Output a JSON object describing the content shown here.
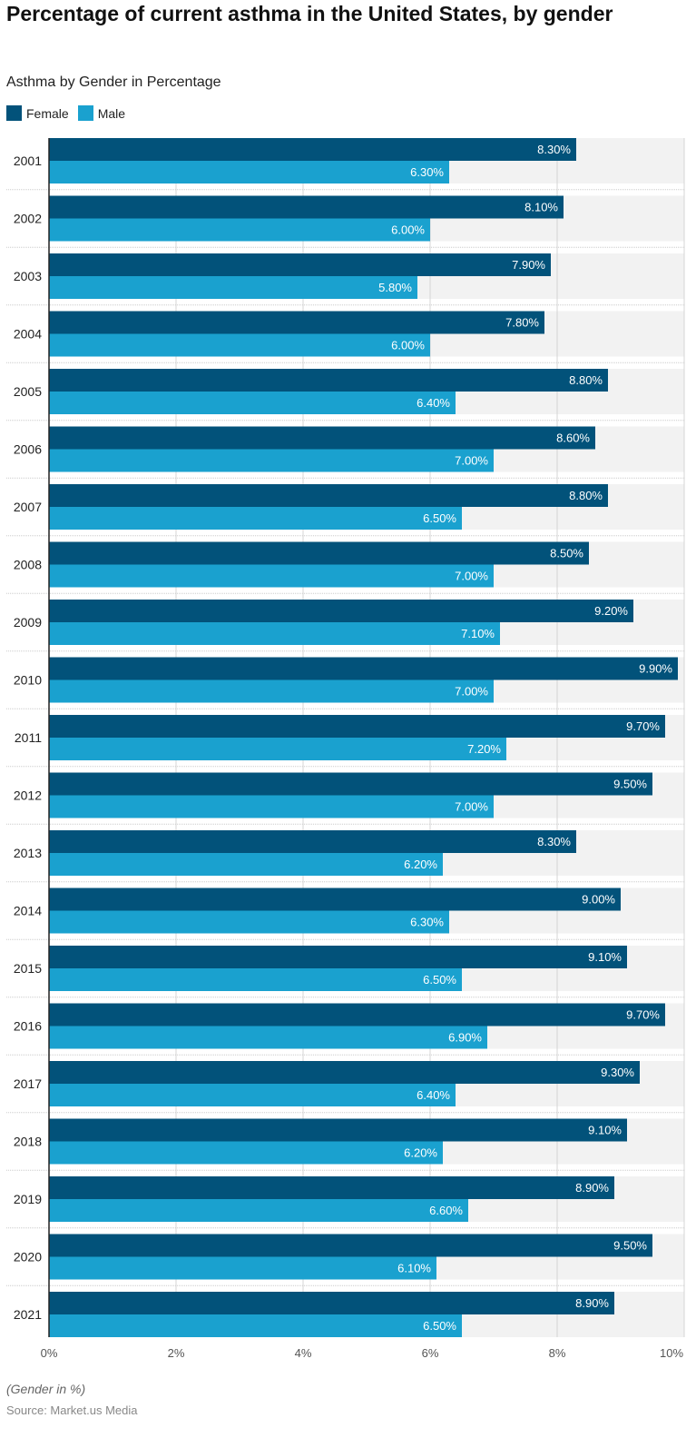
{
  "chart_data": {
    "type": "bar",
    "orientation": "horizontal",
    "title": "Percentage of current asthma in the United States, by gender",
    "subtitle": "Asthma by Gender in Percentage",
    "categories": [
      "2001",
      "2002",
      "2003",
      "2004",
      "2005",
      "2006",
      "2007",
      "2008",
      "2009",
      "2010",
      "2011",
      "2012",
      "2013",
      "2014",
      "2015",
      "2016",
      "2017",
      "2018",
      "2019",
      "2020",
      "2021"
    ],
    "series": [
      {
        "name": "Female",
        "color": "#02527a",
        "values": [
          8.3,
          8.1,
          7.9,
          7.8,
          8.8,
          8.6,
          8.8,
          8.5,
          9.2,
          9.9,
          9.7,
          9.5,
          8.3,
          9.0,
          9.1,
          9.7,
          9.3,
          9.1,
          8.9,
          9.5,
          8.9
        ]
      },
      {
        "name": "Male",
        "color": "#1aa1cf",
        "values": [
          6.3,
          6.0,
          5.8,
          6.0,
          6.4,
          7.0,
          6.5,
          7.0,
          7.1,
          7.0,
          7.2,
          7.0,
          6.2,
          6.3,
          6.5,
          6.9,
          6.4,
          6.2,
          6.6,
          6.1,
          6.5
        ]
      }
    ],
    "xlim": [
      0,
      10
    ],
    "x_ticks": [
      "0%",
      "2%",
      "4%",
      "6%",
      "8%",
      "10%"
    ],
    "grid": true,
    "legend": "top-left",
    "note": "(Gender in %)",
    "source": "Source: Market.us Media"
  }
}
